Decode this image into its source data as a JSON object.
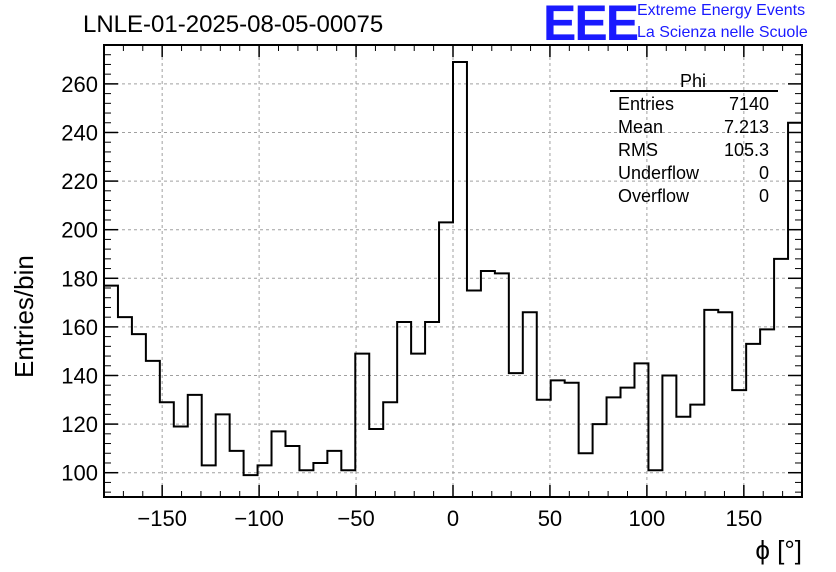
{
  "header": {
    "title": "LNLE-01-2025-08-05-00075",
    "logo_text": "EEE",
    "logo_line1": "Extreme Energy Events",
    "logo_line2": "La Scienza nelle Scuole",
    "brand_color": "#1a1aff"
  },
  "stats_box": {
    "name": "Phi",
    "rows": [
      {
        "label": "Entries",
        "value": "7140"
      },
      {
        "label": "Mean",
        "value": "7.213"
      },
      {
        "label": "RMS",
        "value": "105.3"
      },
      {
        "label": "Underflow",
        "value": "0"
      },
      {
        "label": "Overflow",
        "value": "0"
      }
    ]
  },
  "chart_data": {
    "type": "bar",
    "histogram": true,
    "xlabel": "ϕ [°]",
    "ylabel": "Entries/bin",
    "xlim": [
      -180,
      180
    ],
    "ylim": [
      90,
      276
    ],
    "grid": true,
    "bin_width": 7.2,
    "bin_edges_start": -180,
    "xticks": [
      -150,
      -100,
      -50,
      0,
      50,
      100,
      150
    ],
    "xtick_labels": [
      "−150",
      "−100",
      "−50",
      "0",
      "50",
      "100",
      "150"
    ],
    "yticks": [
      100,
      120,
      140,
      160,
      180,
      200,
      220,
      240,
      260
    ],
    "ytick_labels": [
      "100",
      "120",
      "140",
      "160",
      "180",
      "200",
      "220",
      "240",
      "260"
    ],
    "values": [
      177,
      164,
      157,
      146,
      129,
      119,
      132,
      103,
      124,
      109,
      99,
      103,
      117,
      111,
      101,
      104,
      109,
      101,
      149,
      118,
      129,
      162,
      149,
      162,
      203,
      269,
      175,
      183,
      182,
      141,
      166,
      130,
      138,
      137,
      108,
      120,
      131,
      135,
      145,
      101,
      140,
      123,
      128,
      167,
      166,
      134,
      153,
      159,
      188,
      244
    ]
  }
}
